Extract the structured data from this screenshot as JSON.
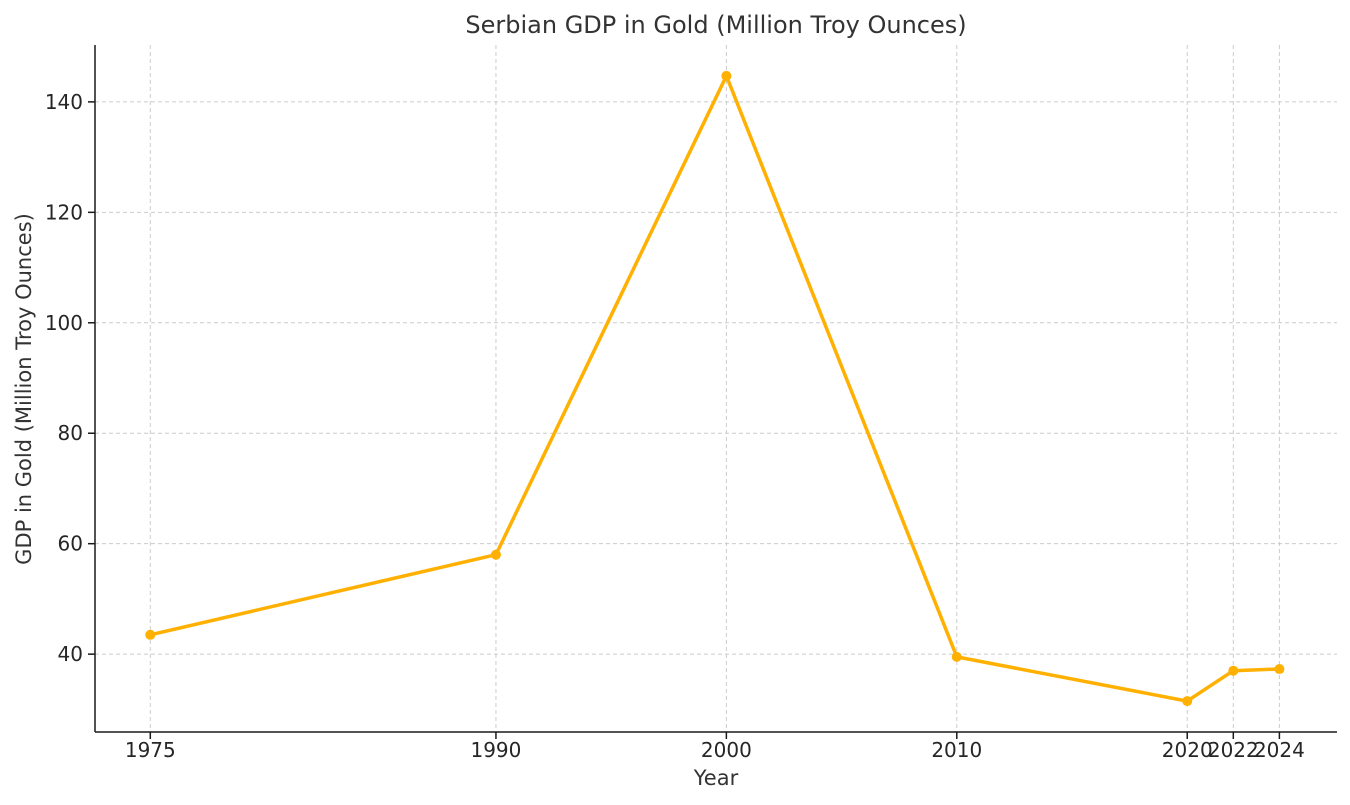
{
  "chart_data": {
    "type": "line",
    "title": "Serbian GDP in Gold (Million Troy Ounces)",
    "xlabel": "Year",
    "ylabel": "GDP in Gold (Million Troy Ounces)",
    "x": [
      1975,
      1990,
      2000,
      2010,
      2020,
      2022,
      2024
    ],
    "series": [
      {
        "values": [
          43.5,
          58.0,
          144.7,
          39.5,
          31.5,
          37.0,
          37.3
        ]
      }
    ],
    "x_ticks": [
      1975,
      1990,
      2000,
      2010,
      2020,
      2022,
      2024
    ],
    "x_tick_labels": [
      "1975",
      "1990",
      "2000",
      "2010",
      "2020",
      "2022",
      "2024"
    ],
    "y_ticks": [
      40,
      60,
      80,
      100,
      120,
      140
    ],
    "y_tick_labels": [
      "40",
      "60",
      "80",
      "100",
      "120",
      "140"
    ],
    "xlim": [
      1972.6,
      2026.5
    ],
    "ylim": [
      25.9,
      150.3
    ],
    "grid": true,
    "colors": {
      "line": "#FFB000",
      "text": "#333333",
      "axis": "#1a1a1a",
      "grid": "#cccccc"
    }
  }
}
